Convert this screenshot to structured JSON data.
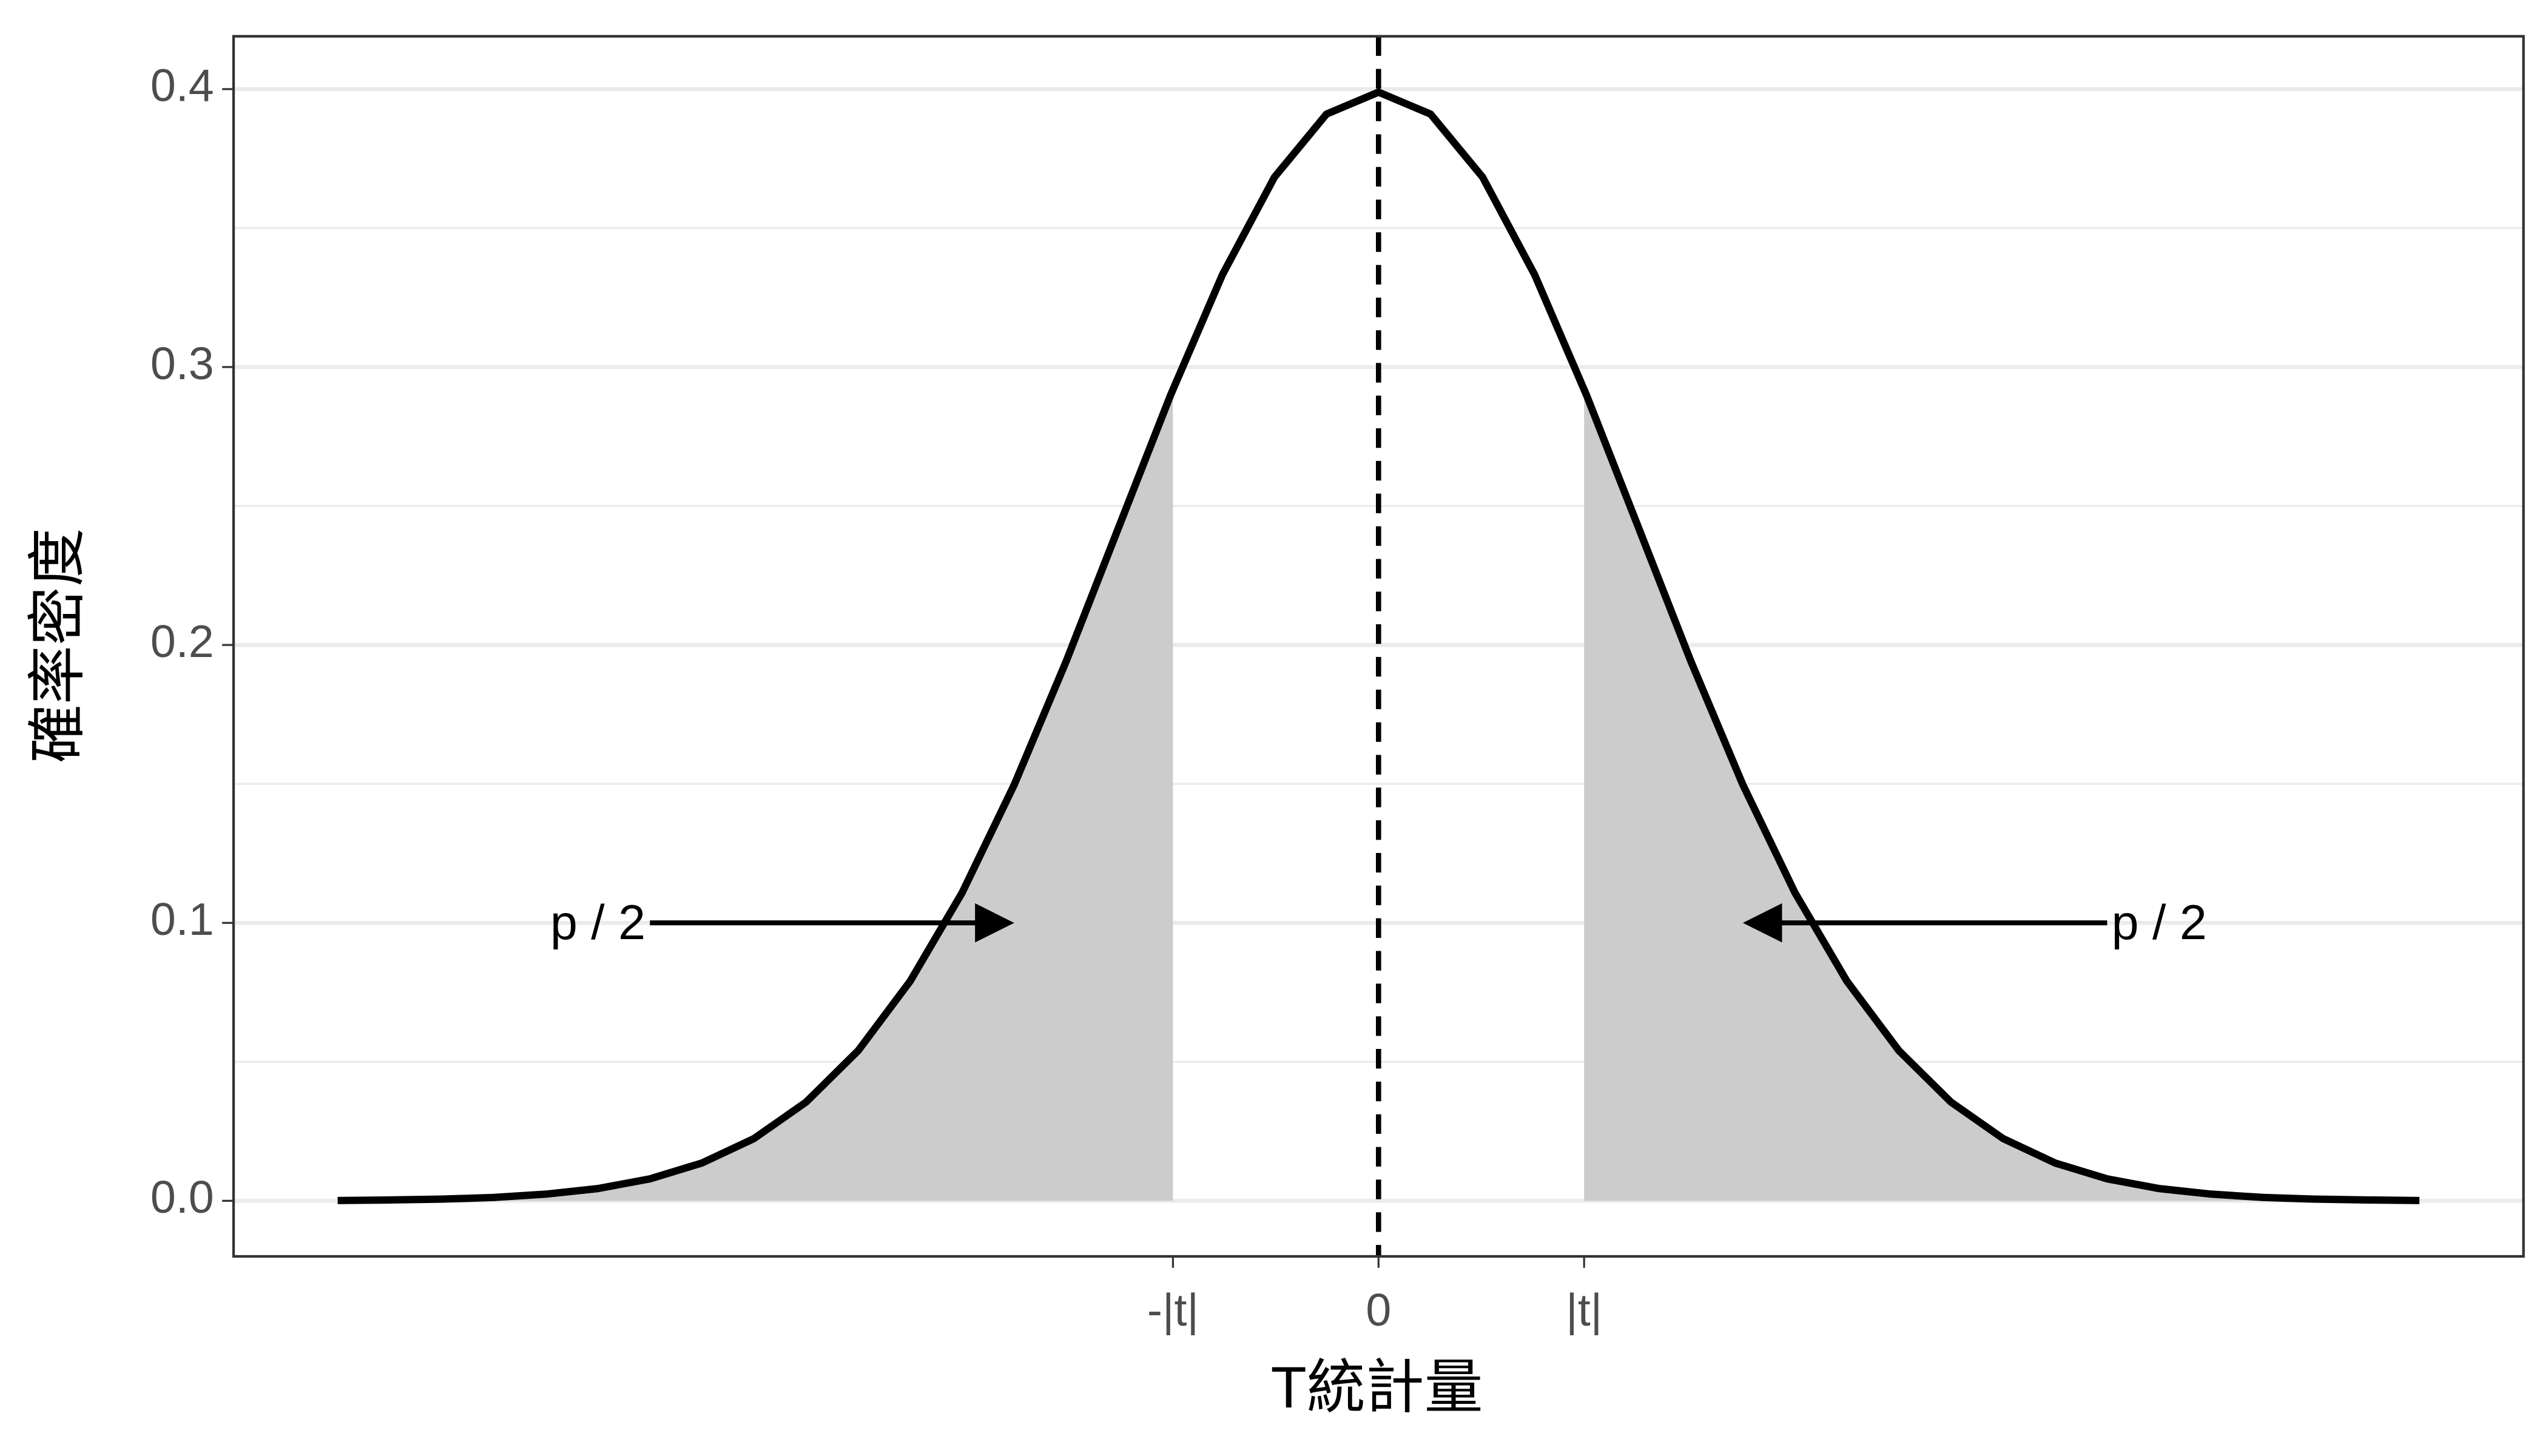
{
  "chart_data": {
    "type": "line",
    "x_label": "T統計量",
    "y_label": "確率密度",
    "x": [
      -4,
      -3.8,
      -3.6,
      -3.4,
      -3.2,
      -3,
      -2.8,
      -2.6,
      -2.4,
      -2.2,
      -2,
      -1.8,
      -1.6,
      -1.4,
      -1.2,
      -1,
      -0.8,
      -0.6,
      -0.4,
      -0.2,
      0,
      0.2,
      0.4,
      0.6,
      0.8,
      1,
      1.2,
      1.4,
      1.6,
      1.8,
      2,
      2.2,
      2.4,
      2.6,
      2.8,
      3,
      3.2,
      3.4,
      3.6,
      3.8,
      4
    ],
    "values": [
      0.0001,
      0.0003,
      0.0006,
      0.0012,
      0.0024,
      0.0044,
      0.0079,
      0.0136,
      0.0224,
      0.0355,
      0.054,
      0.079,
      0.1109,
      0.1497,
      0.1942,
      0.242,
      0.2897,
      0.3332,
      0.3683,
      0.391,
      0.3989,
      0.391,
      0.3683,
      0.3332,
      0.2897,
      0.242,
      0.1942,
      0.1497,
      0.1109,
      0.079,
      0.054,
      0.0355,
      0.0224,
      0.0136,
      0.0079,
      0.0044,
      0.0024,
      0.0012,
      0.0006,
      0.0003,
      0.0001
    ],
    "color": "#000000",
    "shade_color": "#cccccc",
    "xlim": [
      -4.4,
      4.4
    ],
    "ylim": [
      -0.02,
      0.419
    ],
    "xticks": [
      {
        "value": -0.79,
        "label": "-|t|"
      },
      0,
      {
        "value": 0.79,
        "label": "|t|"
      }
    ],
    "yticks": [
      {
        "value": 0,
        "label": "0.0"
      },
      0.1,
      0.2,
      0.3,
      0.4
    ],
    "grid": true,
    "minor_grid": true,
    "vline": 0,
    "annotations": [
      {
        "text": "p / 2",
        "x": -3,
        "y": 0.1,
        "arrow_x": [
          -2.8,
          -1.4
        ]
      },
      {
        "text": "p / 2",
        "x": 3,
        "y": 0.1,
        "arrow_x": [
          2.8,
          1.4
        ]
      }
    ]
  }
}
